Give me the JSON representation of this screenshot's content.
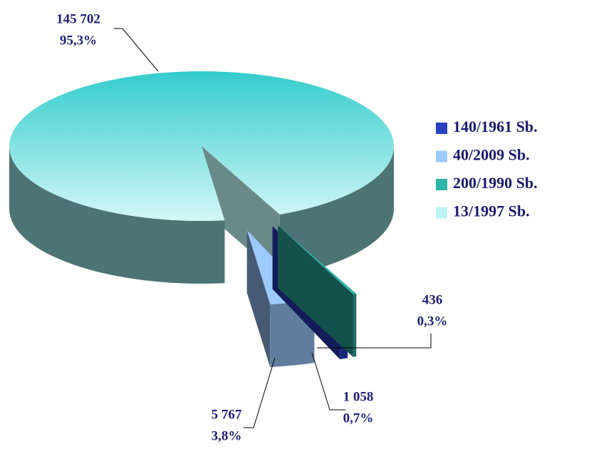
{
  "chart_data": {
    "type": "pie3d",
    "categories": [
      "140/1961 Sb.",
      "40/2009 Sb.",
      "200/1990 Sb.",
      "13/1997 Sb."
    ],
    "values": [
      1058,
      5767,
      436,
      145702
    ],
    "value_labels": [
      "1 058",
      "5 767",
      "436",
      "145 702"
    ],
    "percents": [
      0.7,
      3.8,
      0.3,
      95.3
    ],
    "percent_labels": [
      "0,7%",
      "3,8%",
      "0,3%",
      "95,3%"
    ],
    "colors": [
      "#2a3fc4",
      "#9ccaff",
      "#2fb5a6",
      "#bdf3f3"
    ],
    "legend": "right"
  }
}
